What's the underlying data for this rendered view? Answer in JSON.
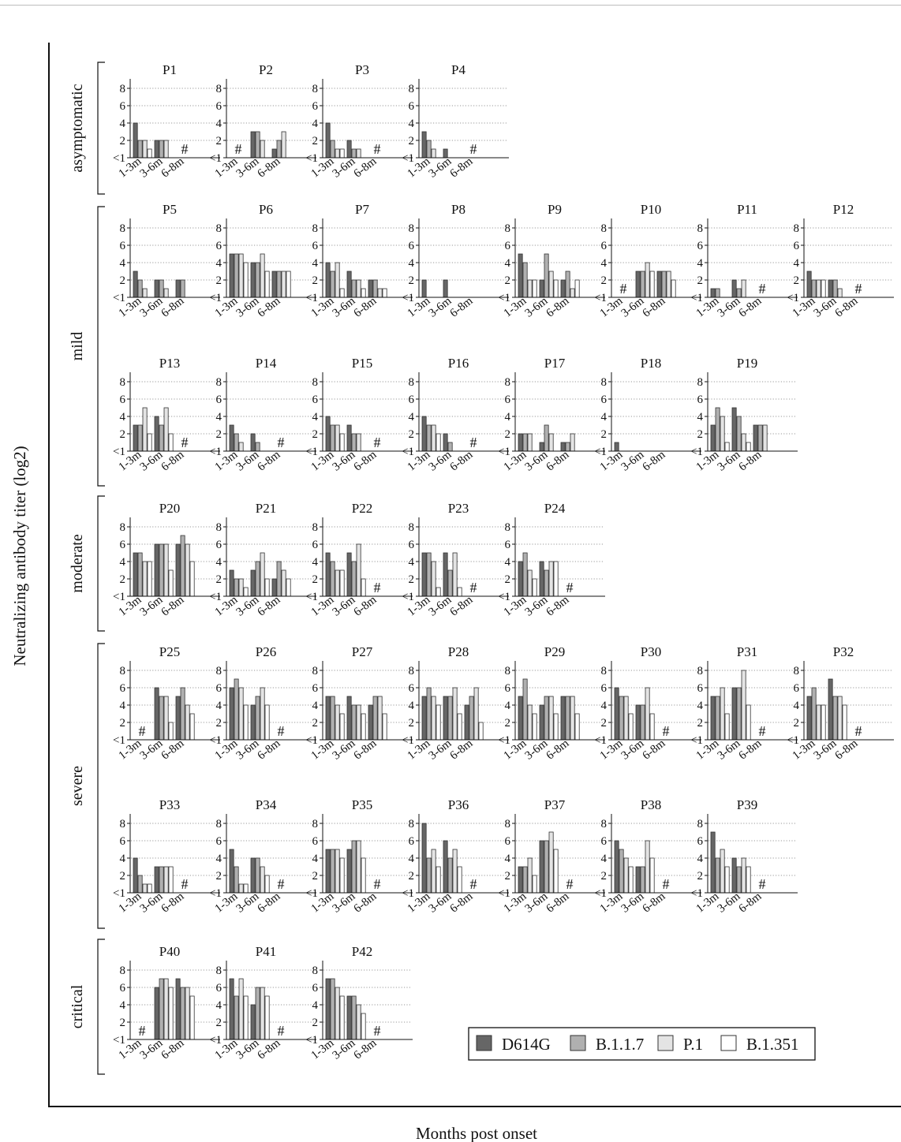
{
  "figure": {
    "ylabel": "Neutralizing antibody titer (log2)",
    "xlabel": "Months post onset",
    "yticks": [
      "<1",
      "2",
      "4",
      "6",
      "8"
    ],
    "xticks": [
      "1-3m",
      "3-6m",
      "6-8m"
    ],
    "missing_marker": "#"
  },
  "legend": [
    {
      "name": "D614G",
      "color": "#666666"
    },
    {
      "name": "B.1.1.7",
      "color": "#b0b0b0"
    },
    {
      "name": "P.1",
      "color": "#e4e4e4"
    },
    {
      "name": "B.1.351",
      "color": "#ffffff"
    }
  ],
  "groups": [
    {
      "label": "asymptomatic"
    },
    {
      "label": "mild"
    },
    {
      "label": "moderate"
    },
    {
      "label": "severe"
    },
    {
      "label": "critical"
    }
  ],
  "chart_data": {
    "type": "bar",
    "ylim": [
      0,
      9
    ],
    "grid": true,
    "legend_position": "bottom-right",
    "categories": [
      "1-3m",
      "3-6m",
      "6-8m"
    ],
    "series_names": [
      "D614G",
      "B.1.1.7",
      "P.1",
      "B.1.351"
    ],
    "note": "",
    "panels": [
      {
        "title": "P1",
        "group": "asymptomatic",
        "values": [
          [
            4,
            2,
            2,
            1
          ],
          [
            2,
            2,
            2,
            0
          ],
          null
        ]
      },
      {
        "title": "P2",
        "group": "asymptomatic",
        "values": [
          null,
          [
            3,
            3,
            2,
            0
          ],
          [
            1,
            2,
            3,
            0
          ]
        ]
      },
      {
        "title": "P3",
        "group": "asymptomatic",
        "values": [
          [
            4,
            2,
            1,
            1
          ],
          [
            2,
            1,
            1,
            0
          ],
          null
        ]
      },
      {
        "title": "P4",
        "group": "asymptomatic",
        "values": [
          [
            3,
            2,
            1,
            0
          ],
          [
            1,
            0,
            0,
            0
          ],
          null
        ]
      },
      {
        "title": "P5",
        "group": "mild",
        "values": [
          [
            3,
            2,
            1,
            0
          ],
          [
            2,
            2,
            1,
            0
          ],
          [
            2,
            2,
            0,
            0
          ]
        ]
      },
      {
        "title": "P6",
        "group": "mild",
        "values": [
          [
            5,
            5,
            5,
            4
          ],
          [
            4,
            4,
            5,
            3
          ],
          [
            3,
            3,
            3,
            3
          ]
        ]
      },
      {
        "title": "P7",
        "group": "mild",
        "values": [
          [
            4,
            3,
            4,
            1
          ],
          [
            3,
            2,
            2,
            1
          ],
          [
            2,
            2,
            1,
            1
          ]
        ]
      },
      {
        "title": "P8",
        "group": "mild",
        "values": [
          [
            2,
            0,
            0,
            0
          ],
          [
            2,
            0,
            0,
            0
          ],
          [
            0,
            0,
            0,
            0
          ]
        ]
      },
      {
        "title": "P9",
        "group": "mild",
        "values": [
          [
            5,
            4,
            2,
            2
          ],
          [
            2,
            5,
            3,
            2
          ],
          [
            2,
            3,
            1,
            2
          ]
        ]
      },
      {
        "title": "P10",
        "group": "mild",
        "values": [
          null,
          [
            3,
            3,
            4,
            3
          ],
          [
            3,
            3,
            3,
            2
          ]
        ]
      },
      {
        "title": "P11",
        "group": "mild",
        "values": [
          [
            1,
            1,
            0,
            0
          ],
          [
            2,
            1,
            2,
            0
          ],
          null
        ]
      },
      {
        "title": "P12",
        "group": "mild",
        "values": [
          [
            3,
            2,
            2,
            2
          ],
          [
            2,
            2,
            1,
            0
          ],
          null
        ]
      },
      {
        "title": "P13",
        "group": "mild",
        "values": [
          [
            3,
            3,
            5,
            2
          ],
          [
            4,
            3,
            5,
            2
          ],
          null
        ]
      },
      {
        "title": "P14",
        "group": "mild",
        "values": [
          [
            3,
            2,
            1,
            0
          ],
          [
            2,
            1,
            0,
            0
          ],
          null
        ]
      },
      {
        "title": "P15",
        "group": "mild",
        "values": [
          [
            4,
            3,
            3,
            2
          ],
          [
            3,
            2,
            2,
            0
          ],
          null
        ]
      },
      {
        "title": "P16",
        "group": "mild",
        "values": [
          [
            4,
            3,
            3,
            2
          ],
          [
            2,
            1,
            0,
            0
          ],
          null
        ]
      },
      {
        "title": "P17",
        "group": "mild",
        "values": [
          [
            2,
            2,
            2,
            0
          ],
          [
            1,
            3,
            2,
            0
          ],
          [
            1,
            1,
            2,
            0
          ]
        ]
      },
      {
        "title": "P18",
        "group": "mild",
        "values": [
          [
            1,
            0,
            0,
            0
          ],
          [
            0,
            0,
            0,
            0
          ],
          [
            0,
            0,
            0,
            0
          ]
        ]
      },
      {
        "title": "P19",
        "group": "mild",
        "values": [
          [
            3,
            5,
            4,
            1
          ],
          [
            5,
            4,
            2,
            1
          ],
          [
            3,
            3,
            3,
            0
          ]
        ]
      },
      {
        "title": "P20",
        "group": "moderate",
        "values": [
          [
            5,
            5,
            4,
            4
          ],
          [
            6,
            6,
            6,
            3
          ],
          [
            6,
            7,
            6,
            4
          ]
        ]
      },
      {
        "title": "P21",
        "group": "moderate",
        "values": [
          [
            3,
            2,
            2,
            1
          ],
          [
            3,
            4,
            5,
            2
          ],
          [
            2,
            4,
            3,
            2
          ]
        ]
      },
      {
        "title": "P22",
        "group": "moderate",
        "values": [
          [
            5,
            4,
            3,
            3
          ],
          [
            5,
            4,
            6,
            2
          ],
          null
        ]
      },
      {
        "title": "P23",
        "group": "moderate",
        "values": [
          [
            5,
            5,
            4,
            1
          ],
          [
            5,
            3,
            5,
            1
          ],
          null
        ]
      },
      {
        "title": "P24",
        "group": "moderate",
        "values": [
          [
            4,
            5,
            3,
            2
          ],
          [
            4,
            3,
            4,
            4
          ],
          null
        ]
      },
      {
        "title": "P25",
        "group": "severe",
        "values": [
          null,
          [
            6,
            5,
            5,
            2
          ],
          [
            5,
            6,
            4,
            3
          ]
        ]
      },
      {
        "title": "P26",
        "group": "severe",
        "values": [
          [
            6,
            7,
            6,
            4
          ],
          [
            4,
            5,
            6,
            4
          ],
          null
        ]
      },
      {
        "title": "P27",
        "group": "severe",
        "values": [
          [
            5,
            5,
            4,
            3
          ],
          [
            5,
            4,
            4,
            3
          ],
          [
            4,
            5,
            5,
            3
          ]
        ]
      },
      {
        "title": "P28",
        "group": "severe",
        "values": [
          [
            5,
            6,
            5,
            4
          ],
          [
            5,
            5,
            6,
            3
          ],
          [
            4,
            5,
            6,
            2
          ]
        ]
      },
      {
        "title": "P29",
        "group": "severe",
        "values": [
          [
            5,
            7,
            4,
            3
          ],
          [
            4,
            5,
            5,
            3
          ],
          [
            5,
            5,
            5,
            3
          ]
        ]
      },
      {
        "title": "P30",
        "group": "severe",
        "values": [
          [
            6,
            5,
            5,
            3
          ],
          [
            4,
            4,
            6,
            3
          ],
          null
        ]
      },
      {
        "title": "P31",
        "group": "severe",
        "values": [
          [
            5,
            5,
            6,
            3
          ],
          [
            6,
            6,
            8,
            4
          ],
          null
        ]
      },
      {
        "title": "P32",
        "group": "severe",
        "values": [
          [
            5,
            6,
            4,
            4
          ],
          [
            7,
            5,
            5,
            4
          ],
          null
        ]
      },
      {
        "title": "P33",
        "group": "severe",
        "values": [
          [
            4,
            2,
            1,
            1
          ],
          [
            3,
            3,
            3,
            3
          ],
          null
        ]
      },
      {
        "title": "P34",
        "group": "severe",
        "values": [
          [
            5,
            3,
            1,
            1
          ],
          [
            4,
            4,
            3,
            2
          ],
          null
        ]
      },
      {
        "title": "P35",
        "group": "severe",
        "values": [
          [
            5,
            5,
            5,
            4
          ],
          [
            5,
            6,
            6,
            4
          ],
          null
        ]
      },
      {
        "title": "P36",
        "group": "severe",
        "values": [
          [
            8,
            4,
            5,
            3
          ],
          [
            6,
            4,
            5,
            3
          ],
          null
        ]
      },
      {
        "title": "P37",
        "group": "severe",
        "values": [
          [
            3,
            3,
            4,
            2
          ],
          [
            6,
            6,
            7,
            5
          ],
          null
        ]
      },
      {
        "title": "P38",
        "group": "severe",
        "values": [
          [
            6,
            5,
            4,
            3
          ],
          [
            3,
            3,
            6,
            4
          ],
          null
        ]
      },
      {
        "title": "P39",
        "group": "severe",
        "values": [
          [
            7,
            4,
            5,
            3
          ],
          [
            4,
            3,
            4,
            3
          ],
          null
        ]
      },
      {
        "title": "P40",
        "group": "critical",
        "values": [
          null,
          [
            6,
            7,
            7,
            6
          ],
          [
            7,
            6,
            6,
            5
          ]
        ]
      },
      {
        "title": "P41",
        "group": "critical",
        "values": [
          [
            7,
            5,
            7,
            5
          ],
          [
            4,
            6,
            6,
            5
          ],
          null
        ]
      },
      {
        "title": "P42",
        "group": "critical",
        "values": [
          [
            7,
            7,
            6,
            5
          ],
          [
            5,
            5,
            4,
            3
          ],
          null
        ]
      }
    ]
  }
}
